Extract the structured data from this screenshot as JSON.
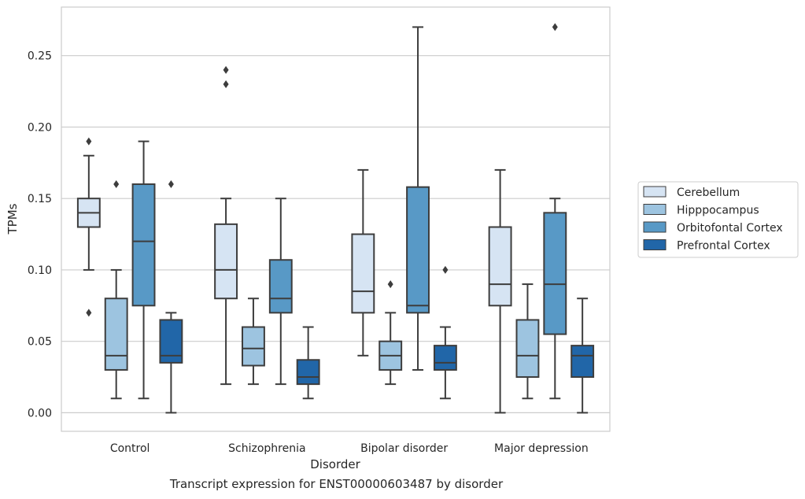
{
  "caption": "Transcript expression for ENST00000603487 by disorder",
  "chart_data": {
    "type": "boxplot",
    "title": "",
    "xlabel": "Disorder",
    "ylabel": "TPMs",
    "ylim": [
      -0.013,
      0.284
    ],
    "yticks": [
      "0.00",
      "0.05",
      "0.10",
      "0.15",
      "0.20",
      "0.25"
    ],
    "ytick_values": [
      0.0,
      0.05,
      0.1,
      0.15,
      0.2,
      0.25
    ],
    "grid": true,
    "legend_position": "right",
    "categories": [
      "Control",
      "Schizophrenia",
      "Bipolar disorder",
      "Major depression"
    ],
    "series": [
      {
        "name": "Cerebellum",
        "color": "#d6e4f3",
        "boxes": [
          {
            "whislo": 0.1,
            "q1": 0.13,
            "med": 0.14,
            "q3": 0.15,
            "whishi": 0.18,
            "fliers": [
              0.07,
              0.19
            ]
          },
          {
            "whislo": 0.02,
            "q1": 0.08,
            "med": 0.1,
            "q3": 0.132,
            "whishi": 0.15,
            "fliers": [
              0.23,
              0.24
            ]
          },
          {
            "whislo": 0.04,
            "q1": 0.07,
            "med": 0.085,
            "q3": 0.125,
            "whishi": 0.17,
            "fliers": []
          },
          {
            "whislo": 0.0,
            "q1": 0.075,
            "med": 0.09,
            "q3": 0.13,
            "whishi": 0.17,
            "fliers": []
          }
        ]
      },
      {
        "name": "Hipppocampus",
        "color": "#9dc4e0",
        "boxes": [
          {
            "whislo": 0.01,
            "q1": 0.03,
            "med": 0.04,
            "q3": 0.08,
            "whishi": 0.1,
            "fliers": [
              0.16
            ]
          },
          {
            "whislo": 0.02,
            "q1": 0.033,
            "med": 0.045,
            "q3": 0.06,
            "whishi": 0.08,
            "fliers": []
          },
          {
            "whislo": 0.02,
            "q1": 0.03,
            "med": 0.04,
            "q3": 0.05,
            "whishi": 0.07,
            "fliers": [
              0.09
            ]
          },
          {
            "whislo": 0.01,
            "q1": 0.025,
            "med": 0.04,
            "q3": 0.065,
            "whishi": 0.09,
            "fliers": []
          }
        ]
      },
      {
        "name": "Orbitofontal Cortex",
        "color": "#5899c6",
        "boxes": [
          {
            "whislo": 0.01,
            "q1": 0.075,
            "med": 0.12,
            "q3": 0.16,
            "whishi": 0.19,
            "fliers": []
          },
          {
            "whislo": 0.02,
            "q1": 0.07,
            "med": 0.08,
            "q3": 0.107,
            "whishi": 0.15,
            "fliers": []
          },
          {
            "whislo": 0.03,
            "q1": 0.07,
            "med": 0.075,
            "q3": 0.158,
            "whishi": 0.27,
            "fliers": []
          },
          {
            "whislo": 0.01,
            "q1": 0.055,
            "med": 0.09,
            "q3": 0.14,
            "whishi": 0.15,
            "fliers": [
              0.27
            ]
          }
        ]
      },
      {
        "name": "Prefrontal Cortex",
        "color": "#2166a8",
        "boxes": [
          {
            "whislo": 0.0,
            "q1": 0.035,
            "med": 0.04,
            "q3": 0.065,
            "whishi": 0.07,
            "fliers": [
              0.16
            ]
          },
          {
            "whislo": 0.01,
            "q1": 0.02,
            "med": 0.025,
            "q3": 0.037,
            "whishi": 0.06,
            "fliers": []
          },
          {
            "whislo": 0.01,
            "q1": 0.03,
            "med": 0.035,
            "q3": 0.047,
            "whishi": 0.06,
            "fliers": [
              0.1
            ]
          },
          {
            "whislo": 0.0,
            "q1": 0.025,
            "med": 0.04,
            "q3": 0.047,
            "whishi": 0.08,
            "fliers": []
          }
        ]
      }
    ]
  }
}
